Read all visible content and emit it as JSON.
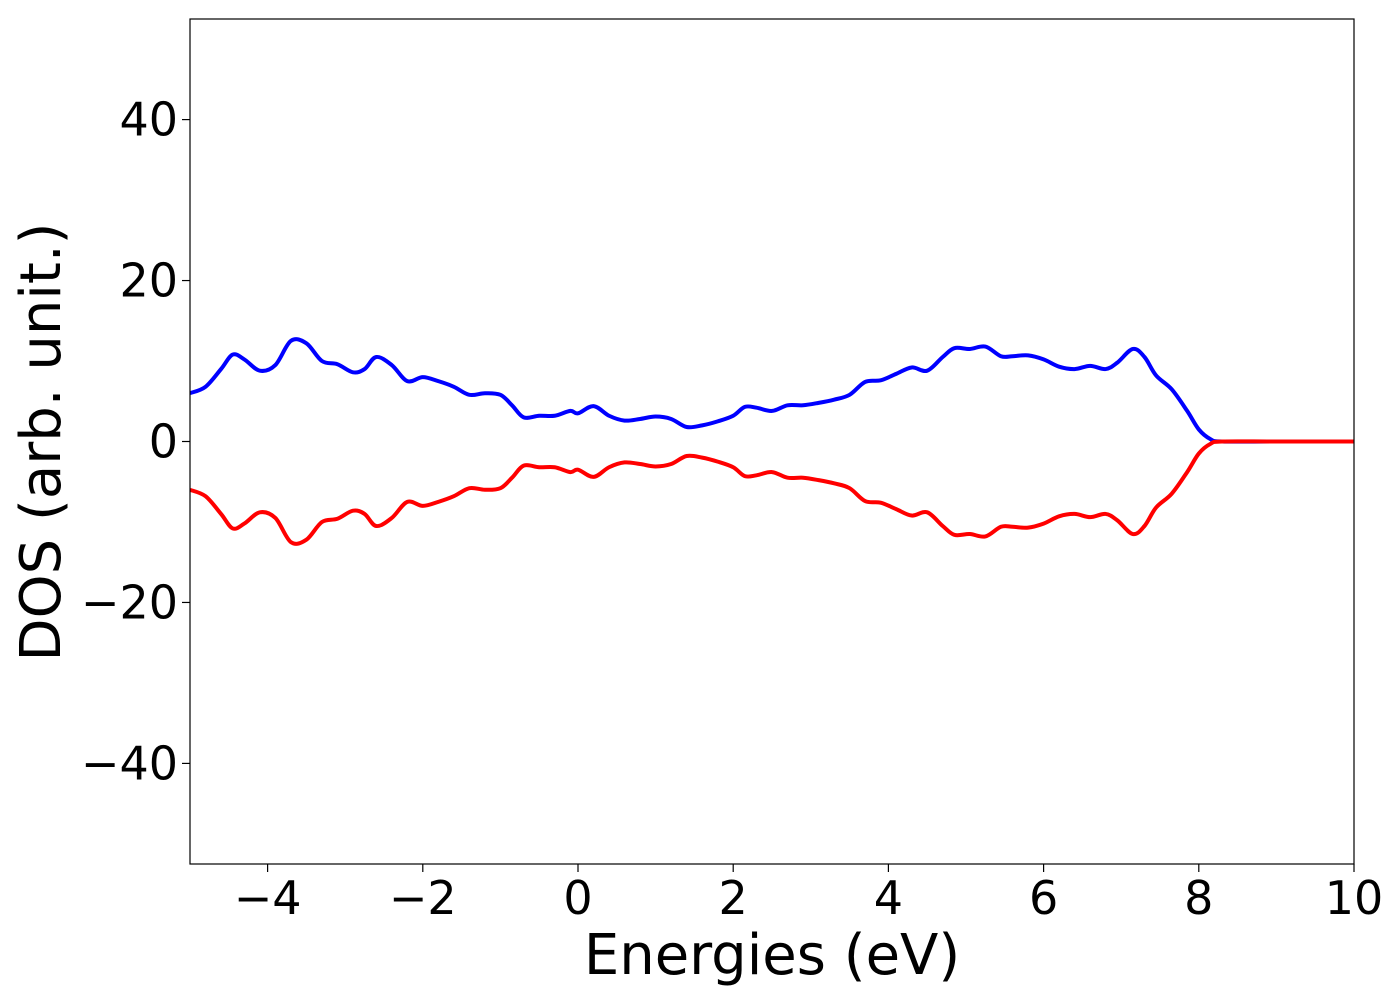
{
  "chart_data": {
    "type": "line",
    "title": "",
    "xlabel": "Energies (eV)",
    "ylabel": "DOS (arb. unit.)",
    "xlim": [
      -5,
      10
    ],
    "ylim": [
      -52.5,
      52.5
    ],
    "xticks": [
      -4,
      -2,
      0,
      2,
      4,
      6,
      8,
      10
    ],
    "xtick_labels": [
      "−4",
      "−2",
      "0",
      "2",
      "4",
      "6",
      "8",
      "10"
    ],
    "yticks": [
      40,
      20,
      0,
      -20,
      -40
    ],
    "ytick_labels": [
      "40",
      "20",
      "0",
      "−20",
      "−40"
    ],
    "grid": false,
    "legend": "none",
    "series": [
      {
        "color": "#0000ff",
        "x": [
          -5.0,
          -4.8,
          -4.6,
          -4.45,
          -4.3,
          -4.1,
          -3.9,
          -3.7,
          -3.5,
          -3.3,
          -3.1,
          -2.9,
          -2.75,
          -2.6,
          -2.4,
          -2.2,
          -2.0,
          -1.8,
          -1.6,
          -1.4,
          -1.2,
          -1.0,
          -0.85,
          -0.7,
          -0.5,
          -0.3,
          -0.1,
          0.0,
          0.2,
          0.4,
          0.6,
          0.8,
          1.0,
          1.2,
          1.4,
          1.6,
          1.8,
          2.0,
          2.15,
          2.3,
          2.5,
          2.7,
          2.9,
          3.1,
          3.3,
          3.5,
          3.7,
          3.9,
          4.1,
          4.3,
          4.5,
          4.7,
          4.85,
          5.05,
          5.25,
          5.45,
          5.6,
          5.8,
          6.0,
          6.2,
          6.4,
          6.6,
          6.8,
          6.95,
          7.15,
          7.3,
          7.45,
          7.65,
          7.85,
          8.0,
          8.15,
          8.3,
          9.0,
          10.0
        ],
        "y": [
          6.0,
          6.8,
          9.0,
          10.8,
          10.2,
          8.8,
          9.5,
          12.5,
          12.2,
          10.0,
          9.6,
          8.6,
          9.0,
          10.5,
          9.5,
          7.5,
          8.0,
          7.5,
          6.8,
          5.8,
          6.0,
          5.8,
          4.5,
          3.0,
          3.2,
          3.2,
          3.8,
          3.5,
          4.4,
          3.2,
          2.6,
          2.8,
          3.1,
          2.8,
          1.8,
          2.0,
          2.5,
          3.2,
          4.3,
          4.2,
          3.8,
          4.5,
          4.5,
          4.8,
          5.2,
          5.8,
          7.4,
          7.6,
          8.4,
          9.2,
          8.8,
          10.5,
          11.6,
          11.5,
          11.8,
          10.6,
          10.6,
          10.7,
          10.2,
          9.3,
          9.0,
          9.4,
          9.0,
          9.8,
          11.5,
          10.5,
          8.2,
          6.5,
          3.8,
          1.5,
          0.3,
          0.0,
          0.0,
          0.0
        ]
      },
      {
        "color": "#ff0000",
        "x": [
          -5.0,
          -4.8,
          -4.6,
          -4.45,
          -4.3,
          -4.1,
          -3.9,
          -3.7,
          -3.5,
          -3.3,
          -3.1,
          -2.9,
          -2.75,
          -2.6,
          -2.4,
          -2.2,
          -2.0,
          -1.8,
          -1.6,
          -1.4,
          -1.2,
          -1.0,
          -0.85,
          -0.7,
          -0.5,
          -0.3,
          -0.1,
          0.0,
          0.2,
          0.4,
          0.6,
          0.8,
          1.0,
          1.2,
          1.4,
          1.6,
          1.8,
          2.0,
          2.15,
          2.3,
          2.5,
          2.7,
          2.9,
          3.1,
          3.3,
          3.5,
          3.7,
          3.9,
          4.1,
          4.3,
          4.5,
          4.7,
          4.85,
          5.05,
          5.25,
          5.45,
          5.6,
          5.8,
          6.0,
          6.2,
          6.4,
          6.6,
          6.8,
          6.95,
          7.15,
          7.3,
          7.45,
          7.65,
          7.85,
          8.0,
          8.15,
          8.3,
          9.0,
          10.0
        ],
        "y": [
          -6.0,
          -6.8,
          -9.0,
          -10.8,
          -10.2,
          -8.8,
          -9.5,
          -12.5,
          -12.2,
          -10.0,
          -9.6,
          -8.6,
          -9.0,
          -10.5,
          -9.5,
          -7.5,
          -8.0,
          -7.5,
          -6.8,
          -5.8,
          -6.0,
          -5.8,
          -4.5,
          -3.0,
          -3.2,
          -3.2,
          -3.8,
          -3.5,
          -4.4,
          -3.2,
          -2.6,
          -2.8,
          -3.1,
          -2.8,
          -1.8,
          -2.0,
          -2.5,
          -3.2,
          -4.3,
          -4.2,
          -3.8,
          -4.5,
          -4.5,
          -4.8,
          -5.2,
          -5.8,
          -7.4,
          -7.6,
          -8.4,
          -9.2,
          -8.8,
          -10.5,
          -11.6,
          -11.5,
          -11.8,
          -10.6,
          -10.6,
          -10.7,
          -10.2,
          -9.3,
          -9.0,
          -9.4,
          -9.0,
          -9.8,
          -11.5,
          -10.5,
          -8.2,
          -6.5,
          -3.8,
          -1.5,
          -0.3,
          0.0,
          0.0,
          0.0
        ]
      }
    ]
  }
}
